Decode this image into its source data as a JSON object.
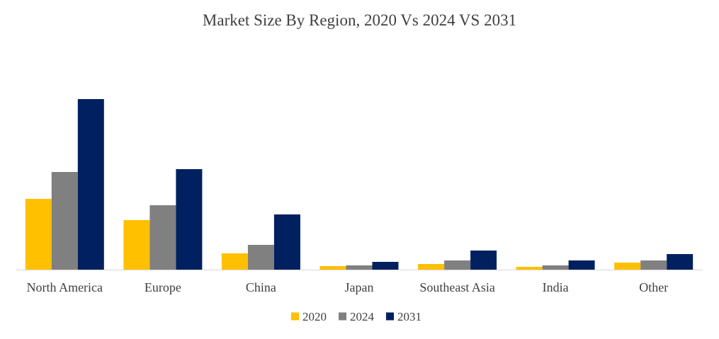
{
  "chart_data": {
    "type": "bar",
    "title": "Market Size By Region, 2020 Vs 2024 VS 2031",
    "categories": [
      "North America",
      "Europe",
      "China",
      "Japan",
      "Southeast Asia",
      "India",
      "Other"
    ],
    "series": [
      {
        "name": "2020",
        "color": "#FFC000",
        "values": [
          100,
          70,
          23,
          5,
          8,
          4,
          10
        ]
      },
      {
        "name": "2024",
        "color": "#808080",
        "values": [
          138,
          91,
          35,
          6,
          13,
          6,
          13
        ]
      },
      {
        "name": "2031",
        "color": "#002060",
        "values": [
          241,
          142,
          78,
          11,
          27,
          13,
          22
        ]
      }
    ],
    "ylim": [
      0,
      250
    ],
    "grid": false,
    "legend_position": "bottom"
  }
}
